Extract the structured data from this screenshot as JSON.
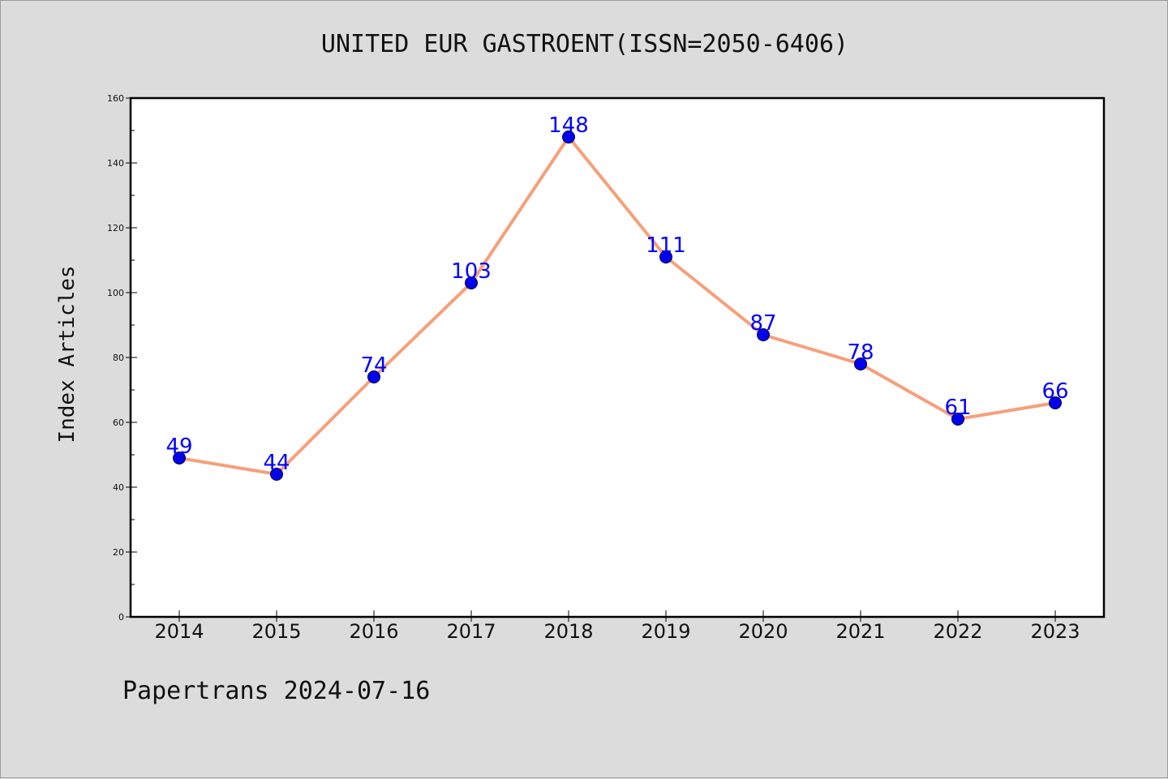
{
  "chart_data": {
    "type": "line",
    "title": "UNITED EUR GASTROENT(ISSN=2050-6406)",
    "xlabel": "",
    "ylabel": "Index Articles",
    "categories": [
      "2014",
      "2015",
      "2016",
      "2017",
      "2018",
      "2019",
      "2020",
      "2021",
      "2022",
      "2023"
    ],
    "series": [
      {
        "values": [
          49,
          44,
          74,
          103,
          148,
          111,
          87,
          78,
          61,
          66
        ]
      }
    ],
    "ylim": [
      0,
      160
    ],
    "yticks": [
      0,
      20,
      40,
      60,
      80,
      100,
      120,
      140,
      160
    ],
    "grid": false,
    "legend": "none",
    "colors": {
      "line": "#f5a07a",
      "marker": "#0000ee",
      "data_label": "#0000ff",
      "axis": "#000000",
      "background": "#dcdcdc",
      "plot_background": "#ffffff"
    }
  },
  "footer": {
    "note": "Papertrans 2024-07-16"
  }
}
